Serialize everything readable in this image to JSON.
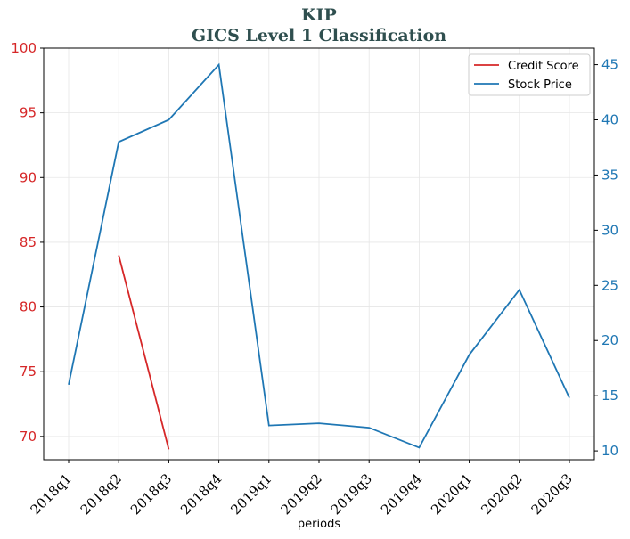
{
  "chart_data": {
    "type": "line",
    "title": "KIP",
    "subtitle": "GICS Level 1 Classification",
    "xlabel": "periods",
    "categories": [
      "2018q1",
      "2018q2",
      "2018q3",
      "2018q4",
      "2019q1",
      "2019q2",
      "2019q3",
      "2019q4",
      "2020q1",
      "2020q2",
      "2020q3"
    ],
    "left_axis": {
      "ylim": [
        68.2,
        100.0
      ],
      "ticks": [
        70,
        75,
        80,
        85,
        90,
        95,
        100
      ],
      "color": "#d62728"
    },
    "right_axis": {
      "ylim": [
        9.2,
        46.5
      ],
      "ticks": [
        10,
        15,
        20,
        25,
        30,
        35,
        40,
        45
      ],
      "color": "#1f77b4"
    },
    "series": [
      {
        "name": "Credit Score",
        "axis": "left",
        "color": "#d62728",
        "values": [
          null,
          84.0,
          69.0,
          null,
          null,
          null,
          null,
          null,
          null,
          null,
          null
        ]
      },
      {
        "name": "Stock Price",
        "axis": "right",
        "color": "#1f77b4",
        "values": [
          16.0,
          38.0,
          40.0,
          45.0,
          12.3,
          12.5,
          12.1,
          10.3,
          18.7,
          24.6,
          14.8
        ]
      }
    ],
    "grid": true,
    "legend_position": "top-right"
  }
}
